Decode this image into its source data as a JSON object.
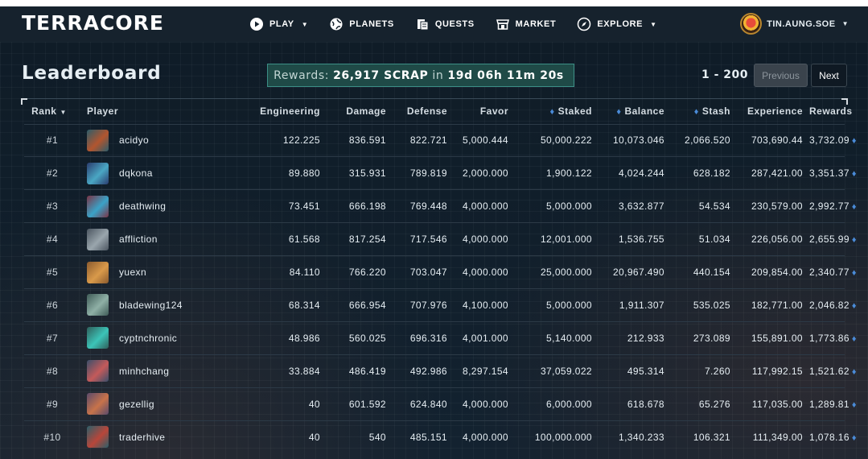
{
  "app": {
    "logo": "TERRACORE",
    "nav": [
      {
        "label": "PLAY",
        "icon": "play-icon",
        "dropdown": true
      },
      {
        "label": "PLANETS",
        "icon": "planet-icon",
        "dropdown": false
      },
      {
        "label": "QUESTS",
        "icon": "quest-icon",
        "dropdown": false
      },
      {
        "label": "MARKET",
        "icon": "market-icon",
        "dropdown": false
      },
      {
        "label": "EXPLORE",
        "icon": "compass-icon",
        "dropdown": true
      }
    ],
    "user": {
      "name": "TIN.AUNG.SOE"
    }
  },
  "page": {
    "title": "Leaderboard",
    "rewards": {
      "prefix": "Rewards:",
      "amount": "26,917 SCRAP",
      "mid": "in",
      "countdown": "19d 06h 11m 20s"
    },
    "pager": {
      "range": "1 - 200",
      "prev": "Previous",
      "next": "Next"
    }
  },
  "table": {
    "headers": {
      "rank": "Rank",
      "player": "Player",
      "engineering": "Engineering",
      "damage": "Damage",
      "defense": "Defense",
      "favor": "Favor",
      "staked": "Staked",
      "balance": "Balance",
      "stash": "Stash",
      "experience": "Experience",
      "rewards": "Rewards"
    },
    "rows": [
      {
        "rank": "#1",
        "player": "acidyo",
        "engineering": "122.225",
        "damage": "836.591",
        "defense": "822.721",
        "favor": "5,000.444",
        "staked": "50,000.222",
        "balance": "10,073.046",
        "stash": "2,066.520",
        "experience": "703,690.44",
        "rewards": "3,732.09",
        "avatar_colors": [
          "#2d5d6b",
          "#b2552e"
        ]
      },
      {
        "rank": "#2",
        "player": "dqkona",
        "engineering": "89.880",
        "damage": "315.931",
        "defense": "789.819",
        "favor": "2,000.000",
        "staked": "1,900.122",
        "balance": "4,024.244",
        "stash": "628.182",
        "experience": "287,421.00",
        "rewards": "3,351.37",
        "avatar_colors": [
          "#2a3c6e",
          "#4aa7c4"
        ]
      },
      {
        "rank": "#3",
        "player": "deathwing",
        "engineering": "73.451",
        "damage": "666.198",
        "defense": "769.448",
        "favor": "4,000.000",
        "staked": "5,000.000",
        "balance": "3,632.877",
        "stash": "54.534",
        "experience": "230,579.00",
        "rewards": "2,992.77",
        "avatar_colors": [
          "#7a3345",
          "#3aa3c8"
        ]
      },
      {
        "rank": "#4",
        "player": "affliction",
        "engineering": "61.568",
        "damage": "817.254",
        "defense": "717.546",
        "favor": "4,000.000",
        "staked": "12,001.000",
        "balance": "1,536.755",
        "stash": "51.034",
        "experience": "226,056.00",
        "rewards": "2,655.99",
        "avatar_colors": [
          "#4b5560",
          "#9aa6ad"
        ]
      },
      {
        "rank": "#5",
        "player": "yuexn",
        "engineering": "84.110",
        "damage": "766.220",
        "defense": "703.047",
        "favor": "4,000.000",
        "staked": "25,000.000",
        "balance": "20,967.490",
        "stash": "440.154",
        "experience": "209,854.00",
        "rewards": "2,340.77",
        "avatar_colors": [
          "#8a5a2e",
          "#d99a4a"
        ]
      },
      {
        "rank": "#6",
        "player": "bladewing124",
        "engineering": "68.314",
        "damage": "666.954",
        "defense": "707.976",
        "favor": "4,100.000",
        "staked": "5,000.000",
        "balance": "1,911.307",
        "stash": "535.025",
        "experience": "182,771.00",
        "rewards": "2,046.82",
        "avatar_colors": [
          "#3f5b57",
          "#8fb0a6"
        ]
      },
      {
        "rank": "#7",
        "player": "cyptnchronic",
        "engineering": "48.986",
        "damage": "560.025",
        "defense": "696.316",
        "favor": "4,001.000",
        "staked": "5,140.000",
        "balance": "212.933",
        "stash": "273.089",
        "experience": "155,891.00",
        "rewards": "1,773.86",
        "avatar_colors": [
          "#2f5e5a",
          "#3cc4b8"
        ]
      },
      {
        "rank": "#8",
        "player": "minhchang",
        "engineering": "33.884",
        "damage": "486.419",
        "defense": "492.986",
        "favor": "8,297.154",
        "staked": "37,059.022",
        "balance": "495.314",
        "stash": "7.260",
        "experience": "117,992.15",
        "rewards": "1,521.62",
        "avatar_colors": [
          "#3a4f6b",
          "#c45a5a"
        ]
      },
      {
        "rank": "#9",
        "player": "gezellig",
        "engineering": "40",
        "damage": "601.592",
        "defense": "624.840",
        "favor": "4,000.000",
        "staked": "6,000.000",
        "balance": "618.678",
        "stash": "65.276",
        "experience": "117,035.00",
        "rewards": "1,289.81",
        "avatar_colors": [
          "#5a4a6b",
          "#c8734a"
        ]
      },
      {
        "rank": "#10",
        "player": "traderhive",
        "engineering": "40",
        "damage": "540",
        "defense": "485.151",
        "favor": "4,000.000",
        "staked": "100,000.000",
        "balance": "1,340.233",
        "stash": "106.321",
        "experience": "111,349.00",
        "rewards": "1,078.16",
        "avatar_colors": [
          "#2b5f6a",
          "#b8463a"
        ]
      }
    ]
  }
}
